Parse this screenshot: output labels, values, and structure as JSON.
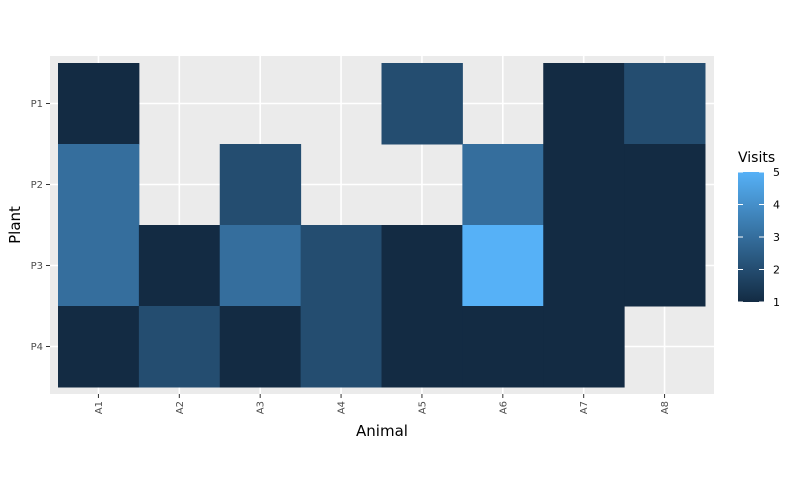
{
  "chart_data": {
    "type": "heatmap",
    "xlabel": "Animal",
    "ylabel": "Plant",
    "x_categories": [
      "A1",
      "A2",
      "A3",
      "A4",
      "A5",
      "A6",
      "A7",
      "A8"
    ],
    "y_categories": [
      "P1",
      "P2",
      "P3",
      "P4"
    ],
    "cells": [
      {
        "x": "A1",
        "y": "P1",
        "value": 1
      },
      {
        "x": "A5",
        "y": "P1",
        "value": 2
      },
      {
        "x": "A7",
        "y": "P1",
        "value": 1
      },
      {
        "x": "A8",
        "y": "P1",
        "value": 2
      },
      {
        "x": "A1",
        "y": "P2",
        "value": 3
      },
      {
        "x": "A3",
        "y": "P2",
        "value": 2
      },
      {
        "x": "A6",
        "y": "P2",
        "value": 3
      },
      {
        "x": "A7",
        "y": "P2",
        "value": 1
      },
      {
        "x": "A8",
        "y": "P2",
        "value": 1
      },
      {
        "x": "A1",
        "y": "P3",
        "value": 3
      },
      {
        "x": "A2",
        "y": "P3",
        "value": 1
      },
      {
        "x": "A3",
        "y": "P3",
        "value": 3
      },
      {
        "x": "A4",
        "y": "P3",
        "value": 2
      },
      {
        "x": "A5",
        "y": "P3",
        "value": 1
      },
      {
        "x": "A6",
        "y": "P3",
        "value": 5
      },
      {
        "x": "A7",
        "y": "P3",
        "value": 1
      },
      {
        "x": "A8",
        "y": "P3",
        "value": 1
      },
      {
        "x": "A1",
        "y": "P4",
        "value": 1
      },
      {
        "x": "A2",
        "y": "P4",
        "value": 2
      },
      {
        "x": "A3",
        "y": "P4",
        "value": 1
      },
      {
        "x": "A4",
        "y": "P4",
        "value": 2
      },
      {
        "x": "A5",
        "y": "P4",
        "value": 1
      },
      {
        "x": "A6",
        "y": "P4",
        "value": 1
      },
      {
        "x": "A7",
        "y": "P4",
        "value": 1
      }
    ],
    "legend": {
      "title": "Visits",
      "position": "right",
      "breaks": [
        "1",
        "2",
        "3",
        "4",
        "5"
      ],
      "range": [
        1,
        5
      ]
    },
    "colors": {
      "low": "#132B43",
      "high": "#56B1F7",
      "panel_background": "#EBEBEB",
      "grid": "#FFFFFF"
    },
    "grid": true
  }
}
